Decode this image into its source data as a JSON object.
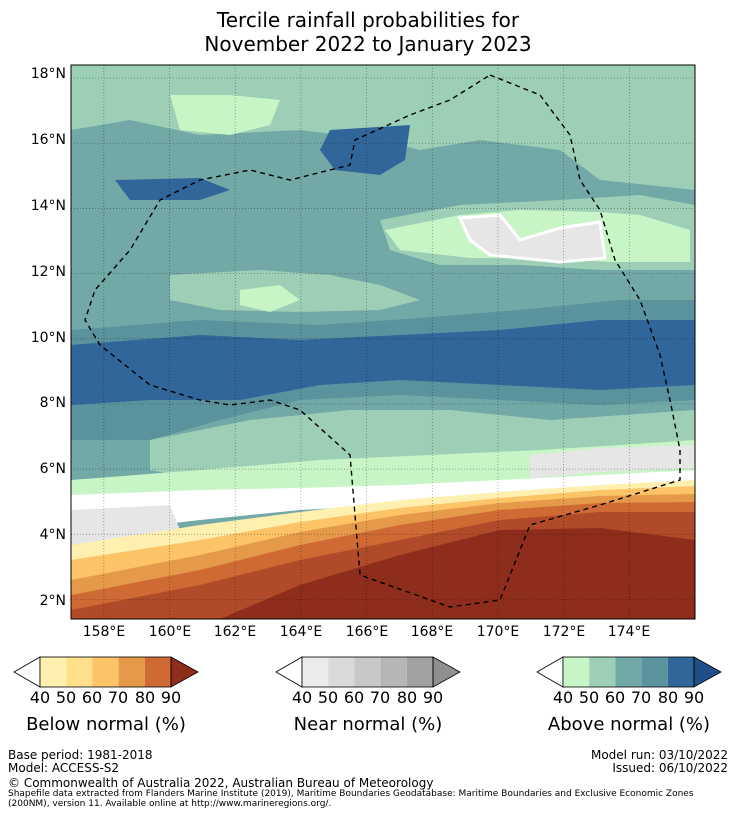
{
  "title": {
    "line1": "Tercile rainfall probabilities for",
    "line2": "November 2022 to January 2023"
  },
  "map": {
    "lat_ticks": [
      "18°N",
      "16°N",
      "14°N",
      "12°N",
      "10°N",
      "8°N",
      "6°N",
      "4°N",
      "2°N"
    ],
    "lon_ticks": [
      "158°E",
      "160°E",
      "162°E",
      "164°E",
      "166°E",
      "168°E",
      "170°E",
      "172°E",
      "174°E"
    ],
    "extent": {
      "lon_min": 157.0,
      "lon_max": 176.0,
      "lat_min": 1.4,
      "lat_max": 18.4
    }
  },
  "legends": {
    "below": {
      "title": "Below normal (%)",
      "ticks": [
        "40",
        "50",
        "60",
        "70",
        "80",
        "90"
      ],
      "colors": [
        "#fff0b0",
        "#ffe08a",
        "#fcc466",
        "#e59a4a",
        "#d06a35",
        "#b04a28",
        "#8e2d1c"
      ]
    },
    "near": {
      "title": "Near normal (%)",
      "ticks": [
        "40",
        "50",
        "60",
        "70",
        "80",
        "90"
      ],
      "colors": [
        "#ebebeb",
        "#dadada",
        "#c8c8c8",
        "#b6b6b6",
        "#a2a2a2",
        "#8f8f8f"
      ]
    },
    "above": {
      "title": "Above normal (%)",
      "ticks": [
        "40",
        "50",
        "60",
        "70",
        "80",
        "90"
      ],
      "colors": [
        "#c8f5c5",
        "#9dcfb6",
        "#72a8a6",
        "#5a929d",
        "#30669a",
        "#1f4e8a"
      ]
    }
  },
  "footer": {
    "base_period": "Base period: 1981-2018",
    "model": "Model: ACCESS-S2",
    "model_run": "Model run: 03/10/2022",
    "issued": "Issued: 06/10/2022",
    "copyright": "© Commonwealth of Australia 2022, Australian Bureau of Meteorology",
    "attribution": "Shapefile data extracted from Flanders Marine Institute (2019), Maritime Boundaries Geodatabase: Maritime Boundaries and Exclusive Economic Zones (200NM), version 11. Available online at http://www.marineregions.org/."
  }
}
